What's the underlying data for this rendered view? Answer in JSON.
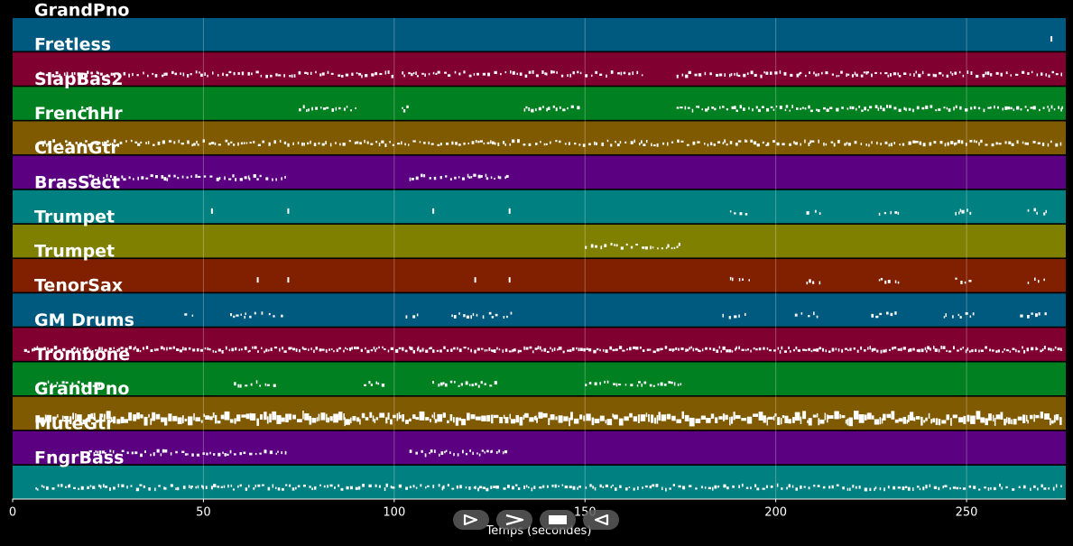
{
  "chart_data": {
    "type": "piano-roll",
    "xlabel": "Temps (secondes)",
    "xlim": [
      0,
      276
    ],
    "x_ticks": [
      0,
      50,
      100,
      150,
      200,
      250
    ],
    "grid": true,
    "tracks": [
      {
        "name": "GrandPno",
        "color": "#005a80",
        "note_segments": [
          [
            272,
            272.5
          ]
        ],
        "density": "sparse"
      },
      {
        "name": "Fretless",
        "color": "#800030",
        "note_segments": [
          [
            7,
            40
          ],
          [
            40,
            100
          ],
          [
            102,
            149
          ],
          [
            150,
            165
          ],
          [
            174,
            275
          ]
        ],
        "density": "medium"
      },
      {
        "name": "SlapBas2",
        "color": "#008020",
        "note_segments": [
          [
            18,
            20
          ],
          [
            75,
            90
          ],
          [
            102,
            104
          ],
          [
            134,
            149
          ],
          [
            174,
            275
          ]
        ],
        "density": "clustered"
      },
      {
        "name": "FrenchHr",
        "color": "#805a00",
        "note_segments": [
          [
            7,
            275
          ]
        ],
        "density": "medium"
      },
      {
        "name": "CleanGtr",
        "color": "#5a0080",
        "note_segments": [
          [
            20,
            72
          ],
          [
            104,
            130
          ]
        ],
        "density": "medium"
      },
      {
        "name": "BrasSect",
        "color": "#008080",
        "note_segments": [
          [
            52,
            52.5
          ],
          [
            72,
            73
          ],
          [
            110,
            110.5
          ],
          [
            130,
            131
          ],
          [
            188,
            193
          ],
          [
            208,
            212
          ],
          [
            227,
            232
          ],
          [
            247,
            252
          ],
          [
            266,
            271
          ]
        ],
        "density": "sparse"
      },
      {
        "name": "Trumpet",
        "color": "#808000",
        "note_segments": [
          [
            150,
            175
          ]
        ],
        "density": "medium"
      },
      {
        "name": "Trumpet",
        "color": "#802000",
        "note_segments": [
          [
            64,
            65
          ],
          [
            72,
            73
          ],
          [
            121,
            122
          ],
          [
            130,
            131
          ],
          [
            188,
            193
          ],
          [
            208,
            212
          ],
          [
            227,
            232
          ],
          [
            247,
            252
          ],
          [
            266,
            271
          ]
        ],
        "density": "sparse"
      },
      {
        "name": "TenorSax",
        "color": "#005a80",
        "note_segments": [
          [
            45,
            47
          ],
          [
            57,
            72
          ],
          [
            103,
            106
          ],
          [
            115,
            131
          ],
          [
            186,
            193
          ],
          [
            205,
            212
          ],
          [
            225,
            232
          ],
          [
            244,
            252
          ],
          [
            264,
            271
          ]
        ],
        "density": "sparse"
      },
      {
        "name": "GM Drums",
        "color": "#800030",
        "note_segments": [
          [
            3,
            275
          ]
        ],
        "density": "dense"
      },
      {
        "name": "Trombone",
        "color": "#008020",
        "note_segments": [
          [
            8,
            23
          ],
          [
            58,
            69
          ],
          [
            92,
            98
          ],
          [
            110,
            127
          ],
          [
            150,
            175
          ]
        ],
        "density": "medium"
      },
      {
        "name": "GrandPno",
        "color": "#805a00",
        "note_segments": [
          [
            6,
            275
          ]
        ],
        "density": "very-dense"
      },
      {
        "name": "MuteGtr",
        "color": "#5a0080",
        "note_segments": [
          [
            20,
            72
          ],
          [
            104,
            130
          ]
        ],
        "density": "medium"
      },
      {
        "name": "FngrBass",
        "color": "#008080",
        "note_segments": [
          [
            6,
            275
          ]
        ],
        "density": "medium"
      }
    ]
  },
  "controls": {
    "buttons": [
      {
        "name": "step-forward-button",
        "icon": "step-forward-icon"
      },
      {
        "name": "play-button",
        "icon": "play-icon"
      },
      {
        "name": "stop-button",
        "icon": "stop-icon"
      },
      {
        "name": "rewind-button",
        "icon": "rewind-icon"
      }
    ]
  }
}
